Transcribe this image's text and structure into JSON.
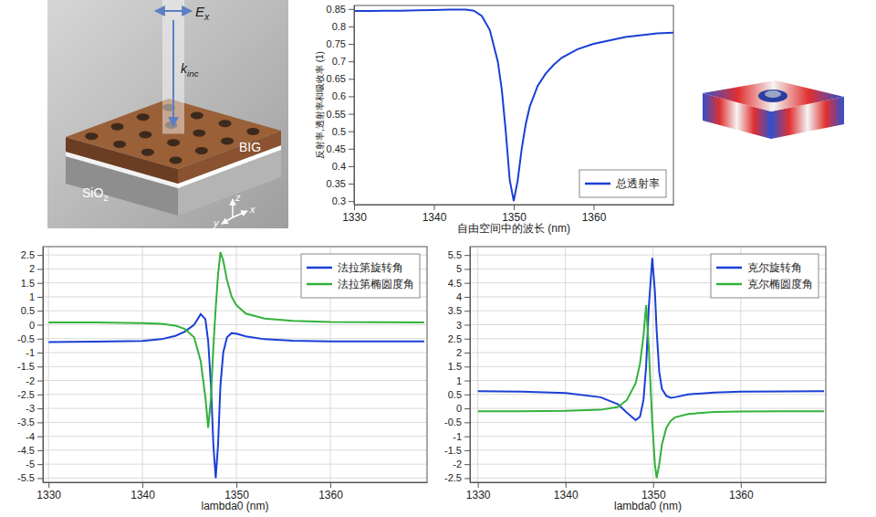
{
  "chart_data": [
    {
      "type": "line",
      "x_label": "自由空间中的波长 (nm)",
      "y_label": "反射率,透射率和吸收率 (1)",
      "x": [
        1330,
        1332,
        1334,
        1336,
        1338,
        1340,
        1342,
        1344,
        1345,
        1346,
        1347,
        1348,
        1348.5,
        1349,
        1349.5,
        1350,
        1350.5,
        1351,
        1351.5,
        1352,
        1353,
        1354,
        1355,
        1356,
        1358,
        1360,
        1362,
        1364,
        1366,
        1368,
        1370
      ],
      "series": [
        {
          "name": "总透射率",
          "color": "#1a3fd6",
          "values": [
            0.844,
            0.844,
            0.845,
            0.845,
            0.846,
            0.847,
            0.848,
            0.848,
            0.845,
            0.83,
            0.79,
            0.7,
            0.62,
            0.5,
            0.36,
            0.3,
            0.36,
            0.45,
            0.52,
            0.57,
            0.63,
            0.665,
            0.69,
            0.71,
            0.735,
            0.75,
            0.76,
            0.77,
            0.775,
            0.78,
            0.782
          ]
        }
      ],
      "xlim": [
        1330,
        1370
      ],
      "xticks": [
        1330,
        1340,
        1350,
        1360
      ],
      "ylim": [
        0.29,
        0.86
      ],
      "yticks": [
        0.3,
        0.35,
        0.4,
        0.45,
        0.5,
        0.55,
        0.6,
        0.65,
        0.7,
        0.75,
        0.8,
        0.85
      ],
      "grid": false,
      "legend": "lower right"
    },
    {
      "type": "line",
      "x_label": "lambda0 (nm)",
      "x": [
        1330,
        1335,
        1340,
        1342,
        1343.5,
        1344.5,
        1345.5,
        1346.2,
        1346.7,
        1347.0,
        1347.3,
        1347.55,
        1347.8,
        1348.05,
        1348.3,
        1348.6,
        1349,
        1349.5,
        1350,
        1351,
        1353,
        1356,
        1360,
        1365,
        1370
      ],
      "series": [
        {
          "name": "法拉第旋转角",
          "color": "#1a3fd6",
          "values": [
            -0.62,
            -0.61,
            -0.58,
            -0.52,
            -0.4,
            -0.25,
            0.0,
            0.38,
            0.2,
            -0.6,
            -2.2,
            -4.3,
            -5.5,
            -4.3,
            -2.2,
            -1.0,
            -0.45,
            -0.3,
            -0.32,
            -0.42,
            -0.52,
            -0.57,
            -0.6,
            -0.6,
            -0.6
          ]
        },
        {
          "name": "法拉第椭圆度角",
          "color": "#33b13b",
          "values": [
            0.08,
            0.08,
            0.06,
            0.03,
            -0.03,
            -0.15,
            -0.45,
            -1.3,
            -2.6,
            -3.7,
            -2.6,
            -0.8,
            0.6,
            1.8,
            2.6,
            2.3,
            1.6,
            1.0,
            0.7,
            0.4,
            0.22,
            0.14,
            0.1,
            0.09,
            0.08
          ]
        }
      ],
      "xlim": [
        1329.4,
        1370.3
      ],
      "xticks": [
        1330,
        1340,
        1350,
        1360
      ],
      "ylim": [
        -5.65,
        2.8
      ],
      "yticks": [
        -5.5,
        -5,
        -4.5,
        -4,
        -3.5,
        -3,
        -2.5,
        -2,
        -1.5,
        -1,
        -0.5,
        0,
        0.5,
        1,
        1.5,
        2,
        2.5
      ],
      "grid": true,
      "legend": "upper right"
    },
    {
      "type": "line",
      "x_label": "lambda0 (nm)",
      "x": [
        1330,
        1335,
        1340,
        1344,
        1346,
        1347,
        1348,
        1348.5,
        1348.9,
        1349.2,
        1349.5,
        1349.9,
        1350.2,
        1350.4,
        1350.7,
        1351,
        1351.5,
        1352,
        1352.5,
        1354,
        1357,
        1360,
        1365,
        1369.5
      ],
      "series": [
        {
          "name": "克尔旋转角",
          "color": "#1a3fd6",
          "values": [
            0.62,
            0.6,
            0.55,
            0.4,
            0.15,
            -0.15,
            -0.42,
            -0.3,
            0.3,
            1.5,
            3.6,
            5.4,
            4.2,
            2.8,
            1.3,
            0.7,
            0.45,
            0.38,
            0.4,
            0.5,
            0.57,
            0.6,
            0.61,
            0.62
          ]
        },
        {
          "name": "克尔椭圆度角",
          "color": "#33b13b",
          "values": [
            -0.1,
            -0.1,
            -0.09,
            -0.05,
            0.05,
            0.3,
            0.9,
            1.6,
            2.6,
            3.7,
            2.2,
            -0.5,
            -2.0,
            -2.5,
            -2.0,
            -1.3,
            -0.7,
            -0.45,
            -0.32,
            -0.2,
            -0.13,
            -0.11,
            -0.1,
            -0.1
          ]
        }
      ],
      "xlim": [
        1329.1,
        1369.7
      ],
      "xticks": [
        1330,
        1340,
        1350,
        1360
      ],
      "ylim": [
        -2.65,
        5.8
      ],
      "yticks": [
        -2.5,
        -2,
        -1.5,
        -1,
        -0.5,
        0,
        0.5,
        1,
        1.5,
        2,
        2.5,
        3,
        3.5,
        4,
        4.5,
        5,
        5.5
      ],
      "grid": true,
      "legend": "upper right"
    }
  ],
  "schematic": {
    "labels": [
      {
        "text": "E",
        "sub": "x"
      },
      {
        "text": "k",
        "sub": "inc"
      },
      {
        "text": "BIG"
      },
      {
        "text": "SiO",
        "sub": "2"
      },
      {
        "text": "z"
      },
      {
        "text": "x"
      },
      {
        "text": "y"
      }
    ]
  }
}
